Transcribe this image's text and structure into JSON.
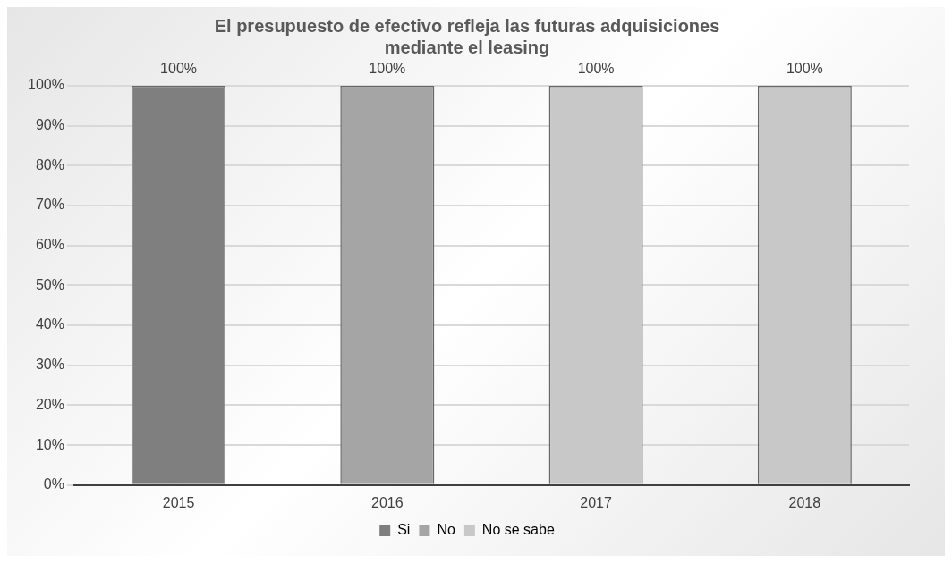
{
  "chart_data": {
    "type": "bar",
    "title": "El presupuesto de efectivo refleja las futuras adquisiciones mediante el leasing",
    "categories": [
      "2015",
      "2016",
      "2017",
      "2018"
    ],
    "series": [
      {
        "name": "Si",
        "color": "#7f7f7f",
        "values": [
          100,
          null,
          null,
          null
        ],
        "value_labels": [
          "100%",
          null,
          null,
          null
        ]
      },
      {
        "name": "No",
        "color": "#a5a5a5",
        "values": [
          null,
          100,
          null,
          null
        ],
        "value_labels": [
          null,
          "100%",
          null,
          null
        ]
      },
      {
        "name": "No se sabe",
        "color": "#c8c8c8",
        "values": [
          null,
          null,
          100,
          100
        ],
        "value_labels": [
          null,
          null,
          "100%",
          "100%"
        ]
      }
    ],
    "ylim": [
      0,
      100
    ],
    "yticks": [
      {
        "value": 0,
        "label": "0%"
      },
      {
        "value": 10,
        "label": "10%"
      },
      {
        "value": 20,
        "label": "20%"
      },
      {
        "value": 30,
        "label": "30%"
      },
      {
        "value": 40,
        "label": "40%"
      },
      {
        "value": 50,
        "label": "50%"
      },
      {
        "value": 60,
        "label": "60%"
      },
      {
        "value": 70,
        "label": "70%"
      },
      {
        "value": 80,
        "label": "80%"
      },
      {
        "value": 90,
        "label": "90%"
      },
      {
        "value": 100,
        "label": "100%"
      }
    ],
    "grid": "y",
    "legend": "bottom"
  }
}
